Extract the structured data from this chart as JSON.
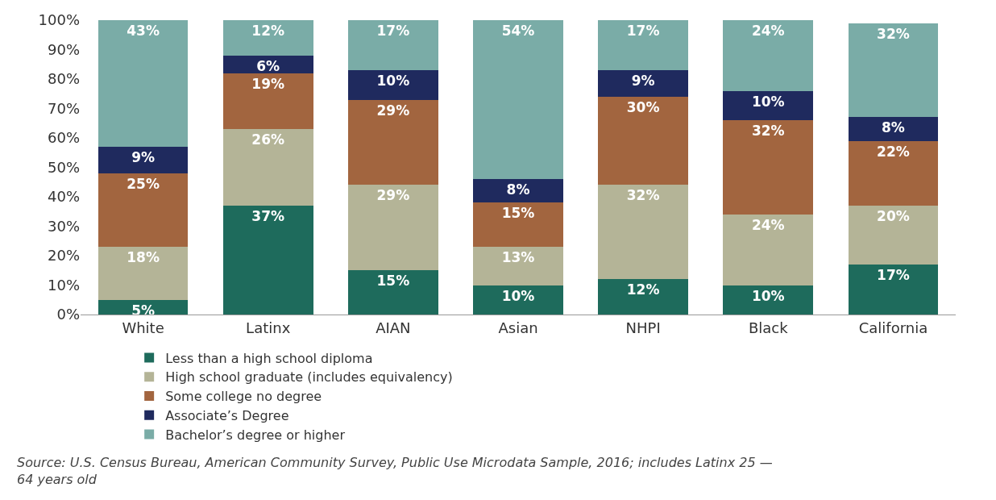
{
  "chart_data": {
    "type": "bar",
    "stacked": true,
    "categories": [
      "White",
      "Latinx",
      "AIAN",
      "Asian",
      "NHPI",
      "Black",
      "California"
    ],
    "series": [
      {
        "name": "Less than a high school diploma",
        "color": "#1e6b5c",
        "values": [
          5,
          37,
          15,
          10,
          12,
          10,
          17
        ],
        "value_labels": [
          "5%",
          "37%",
          "15%",
          "10%",
          "12%",
          "10%",
          "17%"
        ]
      },
      {
        "name": "High school graduate (includes equivalency)",
        "color": "#b4b497",
        "values": [
          18,
          26,
          29,
          13,
          32,
          24,
          20
        ],
        "value_labels": [
          "18%",
          "26%",
          "29%",
          "13%",
          "32%",
          "24%",
          "20%"
        ]
      },
      {
        "name": "Some college no degree",
        "color": "#a2653f",
        "values": [
          25,
          19,
          29,
          15,
          30,
          32,
          22
        ],
        "value_labels": [
          "25%",
          "19%",
          "29%",
          "15%",
          "30%",
          "32%",
          "22%"
        ]
      },
      {
        "name": "Associate’s Degree",
        "color": "#1f2a5e",
        "values": [
          9,
          6,
          10,
          8,
          9,
          10,
          8
        ],
        "value_labels": [
          "9%",
          "6%",
          "10%",
          "8%",
          "9%",
          "10%",
          "8%"
        ]
      },
      {
        "name": "Bachelor’s degree or higher",
        "color": "#7aaca7",
        "values": [
          43,
          12,
          17,
          54,
          17,
          24,
          32
        ],
        "value_labels": [
          "43%",
          "12%",
          "17%",
          "54%",
          "17%",
          "24%",
          "32%"
        ]
      }
    ],
    "ylim": [
      0,
      100
    ],
    "yticks": [
      {
        "value": 0,
        "label": "0%"
      },
      {
        "value": 10,
        "label": "10%"
      },
      {
        "value": 20,
        "label": "20%"
      },
      {
        "value": 30,
        "label": "30%"
      },
      {
        "value": 40,
        "label": "40%"
      },
      {
        "value": 50,
        "label": "50%"
      },
      {
        "value": 60,
        "label": "60%"
      },
      {
        "value": 70,
        "label": "70%"
      },
      {
        "value": 80,
        "label": "80%"
      },
      {
        "value": 90,
        "label": "90%"
      },
      {
        "value": 100,
        "label": "100%"
      }
    ],
    "grid": false,
    "legend": "bottom",
    "annotations": [
      "Source: U.S. Census Bureau, American Community Survey, Public Use Microdata Sample, 2016; includes Latinx 25 — 64 years old"
    ]
  }
}
